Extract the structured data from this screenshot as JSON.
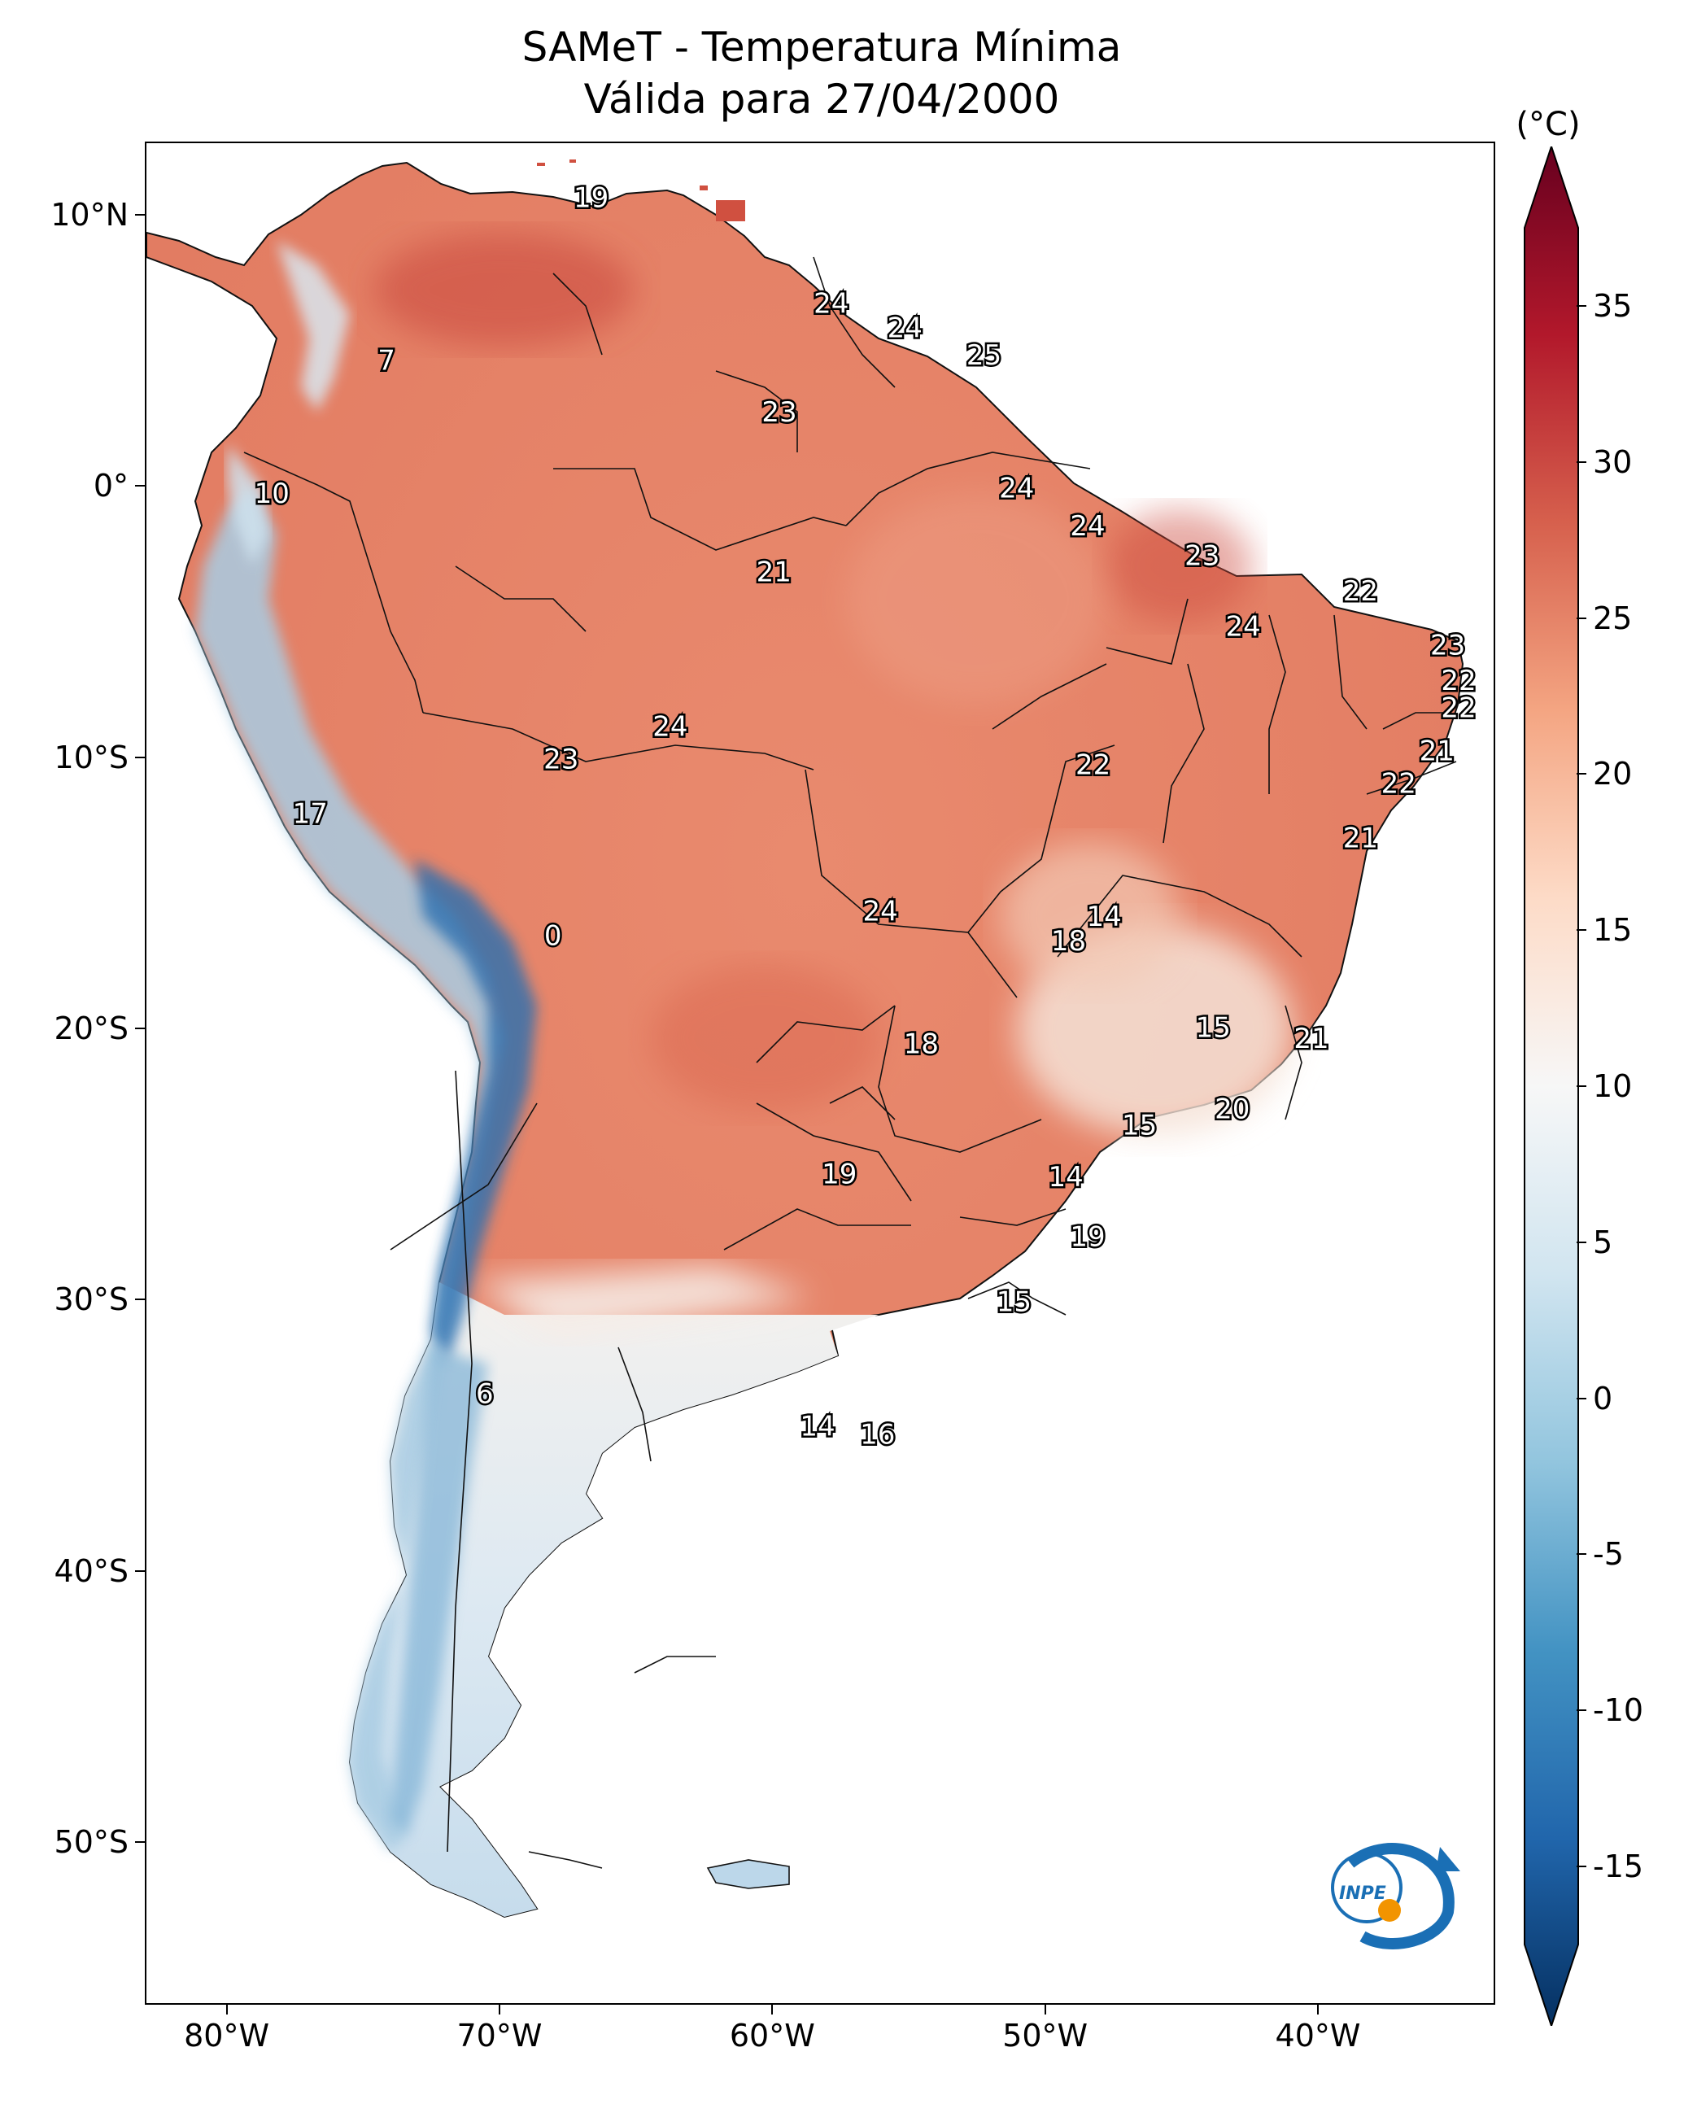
{
  "title": {
    "line1": "SAMeT - Temperatura Mínima",
    "line2": "Válida para 27/04/2000"
  },
  "map": {
    "extent": {
      "lon_min": -83,
      "lon_max": -33.5,
      "lat_min": -56,
      "lat_max": 12.7
    },
    "lat_ticks": [
      {
        "value": 10,
        "label": "10°N"
      },
      {
        "value": 0,
        "label": "0°"
      },
      {
        "value": -10,
        "label": "10°S"
      },
      {
        "value": -20,
        "label": "20°S"
      },
      {
        "value": -30,
        "label": "30°S"
      },
      {
        "value": -40,
        "label": "40°S"
      },
      {
        "value": -50,
        "label": "50°S"
      }
    ],
    "lon_ticks": [
      {
        "value": -80,
        "label": "80°W"
      },
      {
        "value": -70,
        "label": "70°W"
      },
      {
        "value": -60,
        "label": "60°W"
      },
      {
        "value": -50,
        "label": "50°W"
      },
      {
        "value": -40,
        "label": "40°W"
      }
    ],
    "station_values": [
      {
        "lon": -66.7,
        "lat": 10.7,
        "value": "19"
      },
      {
        "lon": -74.2,
        "lat": 4.7,
        "value": "7"
      },
      {
        "lon": -78.4,
        "lat": -0.2,
        "value": "10"
      },
      {
        "lon": -57.9,
        "lat": 6.8,
        "value": "24"
      },
      {
        "lon": -55.2,
        "lat": 5.9,
        "value": "24"
      },
      {
        "lon": -52.3,
        "lat": 4.9,
        "value": "25"
      },
      {
        "lon": -59.8,
        "lat": 2.8,
        "value": "23"
      },
      {
        "lon": -51.1,
        "lat": 0.0,
        "value": "24"
      },
      {
        "lon": -48.5,
        "lat": -1.4,
        "value": "24"
      },
      {
        "lon": -44.3,
        "lat": -2.5,
        "value": "23"
      },
      {
        "lon": -60.0,
        "lat": -3.1,
        "value": "21"
      },
      {
        "lon": -38.5,
        "lat": -3.8,
        "value": "22"
      },
      {
        "lon": -42.8,
        "lat": -5.1,
        "value": "24"
      },
      {
        "lon": -35.3,
        "lat": -5.8,
        "value": "23"
      },
      {
        "lon": -34.9,
        "lat": -7.1,
        "value": "22"
      },
      {
        "lon": -34.9,
        "lat": -8.1,
        "value": "22"
      },
      {
        "lon": -63.8,
        "lat": -8.8,
        "value": "24"
      },
      {
        "lon": -67.8,
        "lat": -10.0,
        "value": "23"
      },
      {
        "lon": -35.7,
        "lat": -9.7,
        "value": "21"
      },
      {
        "lon": -48.3,
        "lat": -10.2,
        "value": "22"
      },
      {
        "lon": -37.1,
        "lat": -10.9,
        "value": "22"
      },
      {
        "lon": -77.0,
        "lat": -12.0,
        "value": "17"
      },
      {
        "lon": -38.5,
        "lat": -12.9,
        "value": "21"
      },
      {
        "lon": -47.9,
        "lat": -15.8,
        "value": "14"
      },
      {
        "lon": -56.1,
        "lat": -15.6,
        "value": "24"
      },
      {
        "lon": -49.2,
        "lat": -16.7,
        "value": "18"
      },
      {
        "lon": -68.1,
        "lat": -16.5,
        "value": "0"
      },
      {
        "lon": -43.9,
        "lat": -19.9,
        "value": "15"
      },
      {
        "lon": -40.3,
        "lat": -20.3,
        "value": "21"
      },
      {
        "lon": -54.6,
        "lat": -20.5,
        "value": "18"
      },
      {
        "lon": -43.2,
        "lat": -22.9,
        "value": "20"
      },
      {
        "lon": -46.6,
        "lat": -23.5,
        "value": "15"
      },
      {
        "lon": -49.3,
        "lat": -25.4,
        "value": "14"
      },
      {
        "lon": -57.6,
        "lat": -25.3,
        "value": "19"
      },
      {
        "lon": -48.5,
        "lat": -27.6,
        "value": "19"
      },
      {
        "lon": -51.2,
        "lat": -30.0,
        "value": "15"
      },
      {
        "lon": -70.6,
        "lat": -33.4,
        "value": "6"
      },
      {
        "lon": -58.4,
        "lat": -34.6,
        "value": "14"
      },
      {
        "lon": -56.2,
        "lat": -34.9,
        "value": "16"
      }
    ]
  },
  "colorbar": {
    "unit": "(°C)",
    "min": -17.5,
    "max": 37.5,
    "ticks": [
      "35",
      "30",
      "25",
      "20",
      "15",
      "10",
      "5",
      "0",
      "-5",
      "-10",
      "-15"
    ],
    "tick_values": [
      35,
      30,
      25,
      20,
      15,
      10,
      5,
      0,
      -5,
      -10,
      -15
    ],
    "colors": [
      "#053061",
      "#2166ac",
      "#4393c3",
      "#92c5de",
      "#d1e5f0",
      "#f7f7f7",
      "#fddbc7",
      "#f4a582",
      "#d6604d",
      "#b2182b",
      "#67001f"
    ]
  },
  "logo": {
    "text": "INPE",
    "colors": {
      "blue": "#1a6fb5",
      "orange": "#f29400"
    }
  }
}
